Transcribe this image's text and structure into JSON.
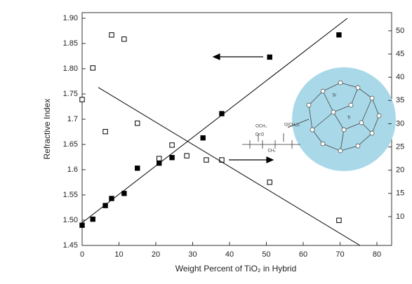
{
  "chart_data": {
    "type": "scatter",
    "xlabel": "Weight Percent of TiO₂ in Hybrid",
    "ylabel": "Refractive Index",
    "xlim": [
      0,
      84
    ],
    "xticks": [
      0,
      10,
      20,
      30,
      40,
      50,
      60,
      70,
      80
    ],
    "ylim": [
      1.45,
      1.9
    ],
    "yticks": [
      {
        "value": 1.45,
        "label": "1.45"
      },
      {
        "value": 1.5,
        "label": "1.50"
      },
      1.55,
      1.6,
      1.65,
      1.7,
      1.75,
      {
        "value": 1.8,
        "label": "1.80"
      },
      1.85,
      {
        "value": 1.9,
        "label": "1.90"
      }
    ],
    "y2lim": [
      3.8,
      52.7
    ],
    "y2ticks": [
      10,
      15,
      20,
      25,
      30,
      35,
      40,
      45,
      50
    ],
    "series": [
      {
        "mode": "markers",
        "color": "#000000",
        "facecolor": "#000000",
        "axis": "y",
        "x": [
          0,
          2.9,
          6.3,
          8,
          11.4,
          15,
          20.9,
          24.4,
          32.8,
          37.9,
          50.9,
          69.7
        ],
        "values": [
          1.49,
          1.502,
          1.529,
          1.543,
          1.553,
          1.603,
          1.613,
          1.624,
          1.663,
          1.711,
          1.823,
          1.867
        ]
      },
      {
        "mode": "markers",
        "color": "#000000",
        "facecolor": "#ffffff",
        "axis": "y2",
        "x": [
          0,
          2.9,
          6.3,
          8,
          11.4,
          15,
          20.9,
          24.4,
          28.4,
          33.7,
          37.9,
          50.9,
          69.7
        ],
        "values": [
          35.2,
          42.0,
          28.3,
          49.1,
          48.2,
          30.1,
          22.5,
          25.4,
          23.1,
          22.2,
          22.2,
          17.4,
          9.2
        ]
      },
      {
        "mode": "line",
        "color": "#000000",
        "axis": "y",
        "x": [
          0,
          72
        ],
        "values": [
          1.495,
          1.9
        ]
      },
      {
        "mode": "line",
        "color": "#000000",
        "axis": "y2",
        "x": [
          4.4,
          75.4
        ],
        "values": [
          37.8,
          3.8
        ]
      }
    ],
    "annotations": [
      "OCH₃",
      "C=O",
      "CH₃",
      "O(CH₂)₃",
      "Si",
      "Ti"
    ]
  }
}
